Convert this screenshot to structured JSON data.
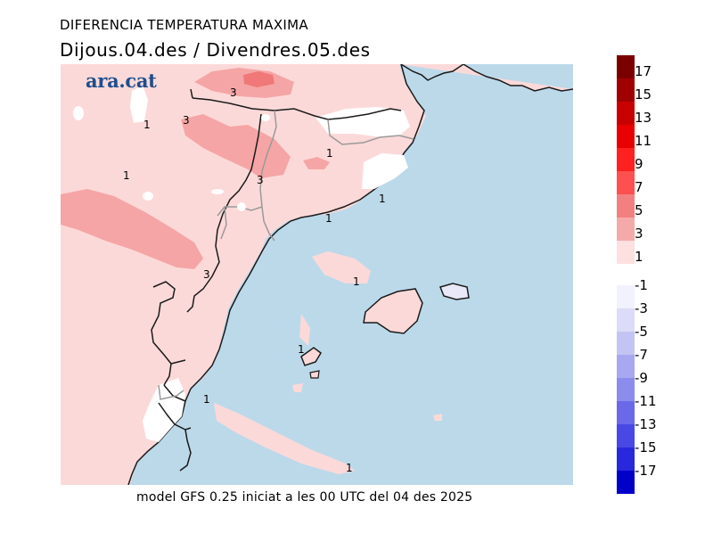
{
  "header": {
    "title": "DIFERENCIA TEMPERATURA MAXIMA",
    "period": "Dijous.04.des / Divendres.05.des"
  },
  "logo": {
    "text": "ara.cat",
    "color": "#1d4f8c"
  },
  "footer": {
    "text": "model GFS 0.25 iniciat a les 00 UTC del 04 des 2025"
  },
  "chart_data": {
    "type": "heatmap",
    "title": "DIFERENCIA TEMPERATURA MAXIMA",
    "subtitle": "Dijous.04.des / Divendres.05.des",
    "variable": "Maximum temperature difference (°C)",
    "region": "Catalonia / Balearic Islands / NE Spain",
    "model": "GFS 0.25, run 00 UTC 04 Dec 2025",
    "contour_labels": [
      "1",
      "1",
      "1",
      "1",
      "1",
      "1",
      "1",
      "1",
      "1",
      "1",
      "3",
      "3",
      "3",
      "3"
    ],
    "legend": {
      "placement": "right",
      "positive": [
        {
          "label": "17",
          "color": "#7a0000"
        },
        {
          "label": "15",
          "color": "#a00000"
        },
        {
          "label": "13",
          "color": "#c80000"
        },
        {
          "label": "11",
          "color": "#e80000"
        },
        {
          "label": "9",
          "color": "#ff2020"
        },
        {
          "label": "7",
          "color": "#ff5050"
        },
        {
          "label": "5",
          "color": "#f28080"
        },
        {
          "label": "3",
          "color": "#f5aaaa"
        },
        {
          "label": "1",
          "color": "#fde0e0"
        }
      ],
      "negative": [
        {
          "label": "-1",
          "color": "#f2f2fc"
        },
        {
          "label": "-3",
          "color": "#dcdcf8"
        },
        {
          "label": "-5",
          "color": "#c4c4f4"
        },
        {
          "label": "-7",
          "color": "#a8a8f0"
        },
        {
          "label": "-9",
          "color": "#8c8cec"
        },
        {
          "label": "-11",
          "color": "#6a6ae8"
        },
        {
          "label": "-13",
          "color": "#4848e4"
        },
        {
          "label": "-15",
          "color": "#2828dc"
        },
        {
          "label": "-17",
          "color": "#0000c8"
        }
      ]
    },
    "colors": {
      "sea": "#bcd9ea",
      "land_1_3": "#fcd9d9",
      "land_3_5": "#f5a5a5",
      "land_5_7": "#f07878",
      "neutral": "#ffffff",
      "coast": "#1a1a1a",
      "border": "#9a9a9a"
    }
  }
}
